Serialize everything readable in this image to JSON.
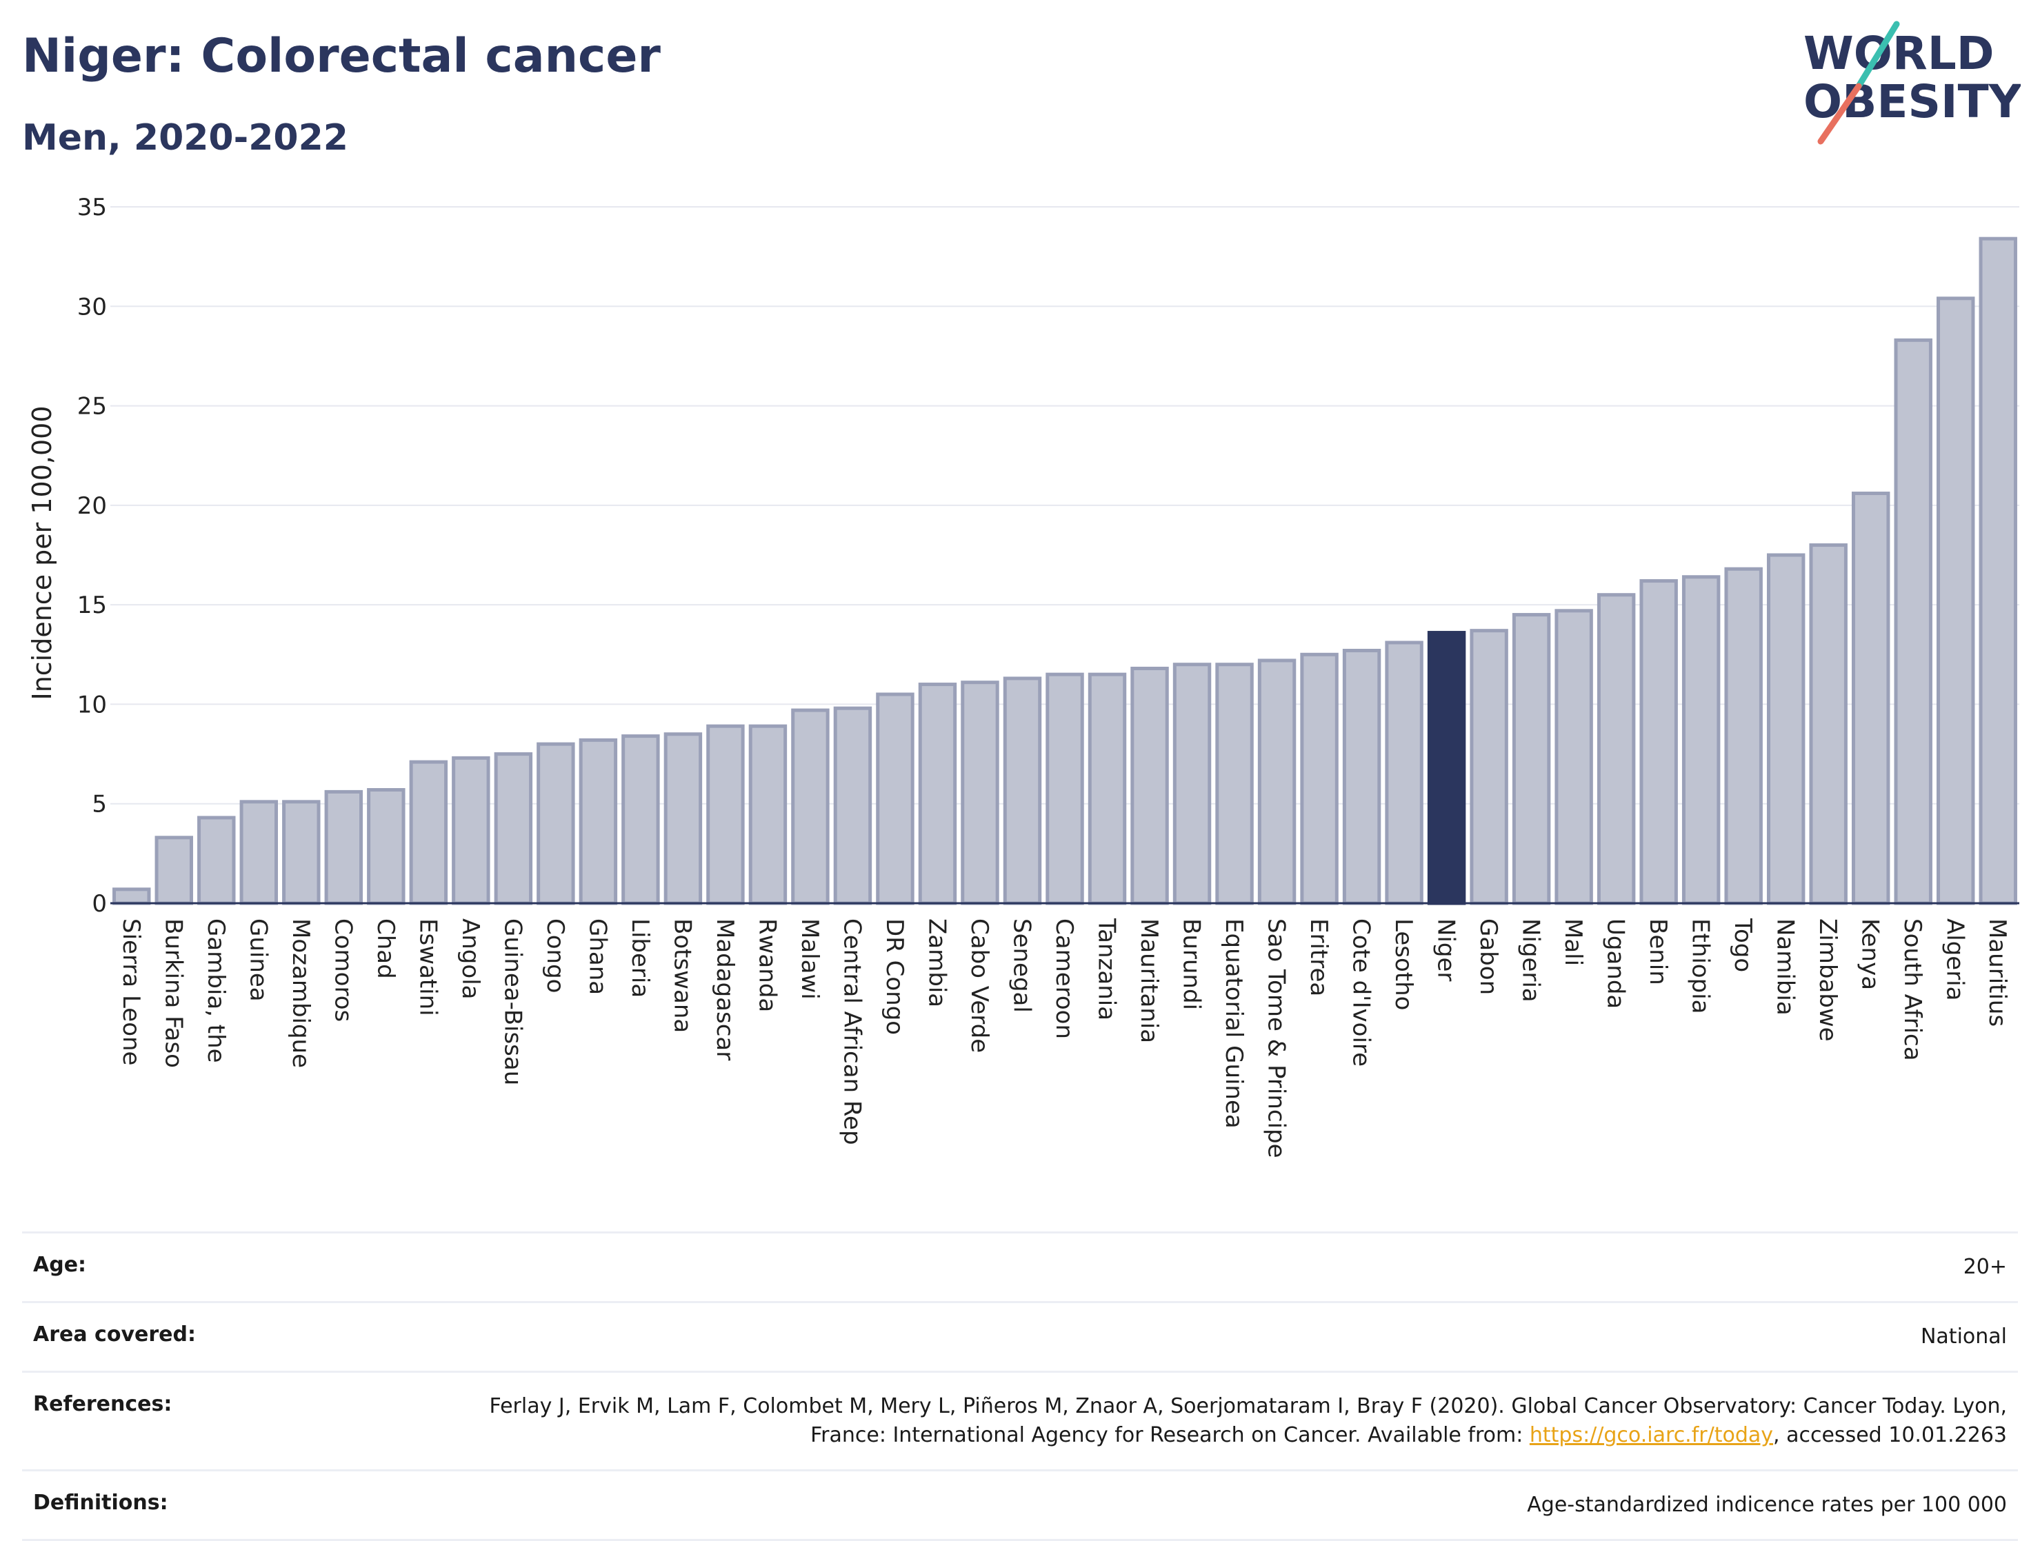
{
  "header": {
    "title": "Niger: Colorectal cancer",
    "subtitle": "Men, 2020-2022"
  },
  "logo": {
    "line1": "WORLD",
    "line2": "OBESITY"
  },
  "colors": {
    "bar": "#bfc3d1",
    "bar_border": "#9aa0b8",
    "highlight": "#2b365e",
    "text": "#2b365e"
  },
  "chart_data": {
    "type": "bar",
    "ylabel": "Incidence per 100,000",
    "ylim": [
      0,
      35
    ],
    "yticks": [
      0,
      5,
      10,
      15,
      20,
      25,
      30,
      35
    ],
    "grid": true,
    "highlight": "Niger",
    "categories": [
      "Sierra Leone",
      "Burkina Faso",
      "Gambia, the",
      "Guinea",
      "Mozambique",
      "Comoros",
      "Chad",
      "Eswatini",
      "Angola",
      "Guinea-Bissau",
      "Congo",
      "Ghana",
      "Liberia",
      "Botswana",
      "Madagascar",
      "Rwanda",
      "Malawi",
      "Central African Rep",
      "DR Congo",
      "Zambia",
      "Cabo Verde",
      "Senegal",
      "Cameroon",
      "Tanzania",
      "Mauritania",
      "Burundi",
      "Equatorial Guinea",
      "Sao Tome & Principe",
      "Eritrea",
      "Cote d'Ivoire",
      "Lesotho",
      "Niger",
      "Gabon",
      "Nigeria",
      "Mali",
      "Uganda",
      "Benin",
      "Ethiopia",
      "Togo",
      "Namibia",
      "Zimbabwe",
      "Kenya",
      "South Africa",
      "Algeria",
      "Mauritius"
    ],
    "values": [
      0.7,
      3.3,
      4.3,
      5.1,
      5.1,
      5.6,
      5.7,
      7.1,
      7.3,
      7.5,
      8.0,
      8.2,
      8.4,
      8.5,
      8.9,
      8.9,
      9.7,
      9.8,
      10.5,
      11.0,
      11.1,
      11.3,
      11.5,
      11.5,
      11.8,
      12.0,
      12.0,
      12.2,
      12.5,
      12.7,
      13.1,
      13.6,
      13.7,
      14.5,
      14.7,
      15.5,
      16.2,
      16.4,
      16.8,
      17.5,
      18.0,
      20.6,
      28.3,
      30.4,
      33.4
    ]
  },
  "info": {
    "age_label": "Age:",
    "age_value": "20+",
    "area_label": "Area covered:",
    "area_value": "National",
    "references_label": "References:",
    "references_text": "Ferlay J, Ervik M, Lam F, Colombet M, Mery L, Piñeros M, Znaor A, Soerjomataram I, Bray F (2020). Global Cancer Observatory: Cancer Today. Lyon, France: International Agency for Research on Cancer. Available from: ",
    "references_link": "https://gco.iarc.fr/today",
    "references_suffix": ", accessed 10.01.2263",
    "definitions_label": "Definitions:",
    "definitions_value": "Age-standardized indicence rates per 100 000"
  }
}
